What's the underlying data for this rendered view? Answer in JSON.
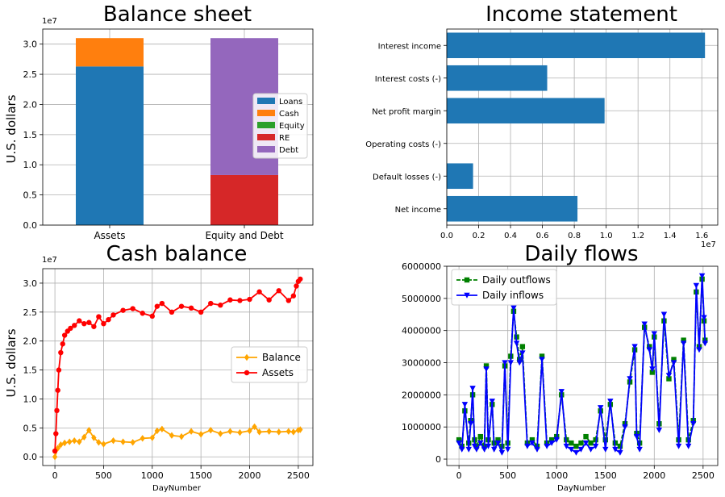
{
  "chart_data": [
    {
      "type": "bar",
      "stacked": true,
      "title": "Balance sheet",
      "ylabel": "U.S. dollars",
      "offset_text": "1e7",
      "categories": [
        "Assets",
        "Equity and Debt"
      ],
      "ylim": [
        0,
        32500000
      ],
      "yticks": [
        "0.0",
        "0.5",
        "1.0",
        "1.5",
        "2.0",
        "2.5",
        "3.0"
      ],
      "series": [
        {
          "name": "Loans",
          "color": "#1f77b4",
          "values": [
            26300000,
            0
          ]
        },
        {
          "name": "Cash",
          "color": "#ff7f0e",
          "values": [
            4700000,
            0
          ]
        },
        {
          "name": "Equity",
          "color": "#2ca02c",
          "values": [
            0,
            0
          ]
        },
        {
          "name": "RE",
          "color": "#d62728",
          "values": [
            0,
            8300000
          ]
        },
        {
          "name": "Debt",
          "color": "#9467bd",
          "values": [
            0,
            22700000
          ]
        }
      ],
      "legend_position": "center-right",
      "grid": true
    },
    {
      "type": "barh",
      "title": "Income statement",
      "offset_text": "1e7",
      "categories": [
        "Interest income",
        "Interest costs (-)",
        "Net profit margin",
        "Operating costs (-)",
        "Default losses (-)",
        "Net income"
      ],
      "values": [
        16200000,
        6300000,
        9900000,
        0,
        1650000,
        8200000
      ],
      "color": "#1f77b4",
      "xlim": [
        0,
        17000000
      ],
      "xticks": [
        "0.0",
        "0.2",
        "0.4",
        "0.6",
        "0.8",
        "1.0",
        "1.2",
        "1.4",
        "1.6"
      ],
      "grid": true
    },
    {
      "type": "line",
      "title": "Cash balance",
      "xlabel": "DayNumber",
      "ylabel": "U.S. dollars",
      "offset_text": "1e7",
      "xlim": [
        -125,
        2650
      ],
      "ylim": [
        -1500000,
        32500000
      ],
      "xticks": [
        "0",
        "500",
        "1000",
        "1500",
        "2000",
        "2500"
      ],
      "yticks": [
        "0.0",
        "0.5",
        "1.0",
        "1.5",
        "2.0",
        "2.5",
        "3.0"
      ],
      "series": [
        {
          "name": "Balance",
          "color": "#ffa500",
          "marker": "diamond",
          "x": [
            0,
            30,
            60,
            100,
            150,
            200,
            250,
            300,
            350,
            400,
            450,
            500,
            600,
            700,
            800,
            900,
            1000,
            1050,
            1100,
            1200,
            1300,
            1400,
            1500,
            1600,
            1700,
            1800,
            1900,
            2000,
            2050,
            2100,
            2200,
            2300,
            2400,
            2450,
            2500,
            2520
          ],
          "y": [
            0,
            1500000,
            2100000,
            2400000,
            2600000,
            2800000,
            2600000,
            3400000,
            4600000,
            3300000,
            2500000,
            2200000,
            2800000,
            2600000,
            2500000,
            3200000,
            3300000,
            4500000,
            4800000,
            3700000,
            3500000,
            4400000,
            3900000,
            4600000,
            4000000,
            4400000,
            4200000,
            4500000,
            5200000,
            4300000,
            4400000,
            4300000,
            4400000,
            4300000,
            4600000,
            4700000
          ]
        },
        {
          "name": "Assets",
          "color": "#ff0000",
          "marker": "circle",
          "x": [
            0,
            10,
            20,
            30,
            40,
            60,
            80,
            100,
            130,
            160,
            200,
            250,
            300,
            350,
            400,
            450,
            500,
            550,
            600,
            700,
            800,
            900,
            1000,
            1050,
            1100,
            1200,
            1300,
            1400,
            1500,
            1600,
            1700,
            1800,
            1900,
            2000,
            2100,
            2200,
            2300,
            2400,
            2450,
            2480,
            2500,
            2520
          ],
          "y": [
            1000000,
            4000000,
            8000000,
            11500000,
            15000000,
            18000000,
            19500000,
            21000000,
            21700000,
            22200000,
            22700000,
            23500000,
            23000000,
            23200000,
            22500000,
            24200000,
            23000000,
            23700000,
            24500000,
            25300000,
            25600000,
            24800000,
            24300000,
            26000000,
            26500000,
            25000000,
            26000000,
            25700000,
            25000000,
            26500000,
            26200000,
            27100000,
            27000000,
            27200000,
            28500000,
            27100000,
            28700000,
            27000000,
            27800000,
            29500000,
            30300000,
            30700000
          ]
        }
      ],
      "legend_position": "center-right",
      "grid": true
    },
    {
      "type": "line",
      "title": "Daily flows",
      "xlabel": "DayNumber",
      "xlim": [
        -125,
        2650
      ],
      "ylim": [
        -200000,
        6000000
      ],
      "xticks": [
        "0",
        "500",
        "1000",
        "1500",
        "2000",
        "2500"
      ],
      "yticks": [
        "0",
        "1000000",
        "2000000",
        "3000000",
        "4000000",
        "5000000",
        "6000000"
      ],
      "series": [
        {
          "name": "Daily outflows",
          "color": "#008000",
          "marker": "square",
          "dashed": true,
          "x": [
            0,
            30,
            60,
            100,
            120,
            140,
            160,
            180,
            220,
            260,
            280,
            300,
            340,
            360,
            400,
            440,
            470,
            500,
            530,
            560,
            590,
            620,
            650,
            700,
            750,
            800,
            850,
            900,
            950,
            1000,
            1050,
            1100,
            1150,
            1200,
            1250,
            1300,
            1350,
            1400,
            1450,
            1500,
            1550,
            1600,
            1650,
            1700,
            1750,
            1800,
            1820,
            1850,
            1900,
            1950,
            1980,
            2000,
            2050,
            2100,
            2150,
            2200,
            2250,
            2300,
            2350,
            2400,
            2430,
            2460,
            2490,
            2510,
            2520
          ],
          "y": [
            600000,
            400000,
            1500000,
            500000,
            1200000,
            2000000,
            600000,
            400000,
            700000,
            400000,
            2900000,
            600000,
            1700000,
            500000,
            600000,
            400000,
            2900000,
            500000,
            3200000,
            4600000,
            3800000,
            3100000,
            3500000,
            500000,
            600000,
            400000,
            3200000,
            500000,
            600000,
            700000,
            2000000,
            600000,
            500000,
            400000,
            500000,
            700000,
            500000,
            600000,
            1500000,
            600000,
            1700000,
            500000,
            400000,
            1100000,
            2400000,
            3400000,
            800000,
            500000,
            4100000,
            3500000,
            2700000,
            3800000,
            1100000,
            4300000,
            2500000,
            3100000,
            600000,
            3700000,
            600000,
            1200000,
            5200000,
            3500000,
            5600000,
            4300000,
            3700000
          ]
        },
        {
          "name": "Daily inflows",
          "color": "#0000ff",
          "marker": "triangle-down",
          "x": [
            0,
            30,
            60,
            100,
            120,
            140,
            160,
            180,
            220,
            260,
            280,
            300,
            340,
            360,
            400,
            440,
            470,
            500,
            530,
            560,
            590,
            620,
            650,
            700,
            750,
            800,
            850,
            900,
            950,
            1000,
            1050,
            1100,
            1150,
            1200,
            1250,
            1300,
            1350,
            1400,
            1450,
            1500,
            1550,
            1600,
            1650,
            1700,
            1750,
            1800,
            1820,
            1850,
            1900,
            1950,
            1980,
            2000,
            2050,
            2100,
            2150,
            2200,
            2250,
            2300,
            2350,
            2400,
            2430,
            2460,
            2490,
            2510,
            2520
          ],
          "y": [
            500000,
            300000,
            1700000,
            300000,
            1100000,
            2200000,
            400000,
            300000,
            500000,
            300000,
            2800000,
            400000,
            1800000,
            300000,
            500000,
            200000,
            3000000,
            300000,
            3000000,
            4700000,
            3600000,
            3000000,
            3300000,
            400000,
            500000,
            300000,
            3100000,
            400000,
            500000,
            600000,
            2100000,
            400000,
            300000,
            200000,
            300000,
            500000,
            300000,
            400000,
            1600000,
            300000,
            1800000,
            300000,
            200000,
            1000000,
            2500000,
            3500000,
            700000,
            300000,
            4200000,
            3400000,
            2800000,
            3900000,
            900000,
            4500000,
            2600000,
            3000000,
            400000,
            3600000,
            400000,
            1100000,
            5400000,
            3400000,
            5700000,
            4400000,
            3600000
          ]
        }
      ],
      "legend_position": "top-left",
      "grid": true
    }
  ]
}
